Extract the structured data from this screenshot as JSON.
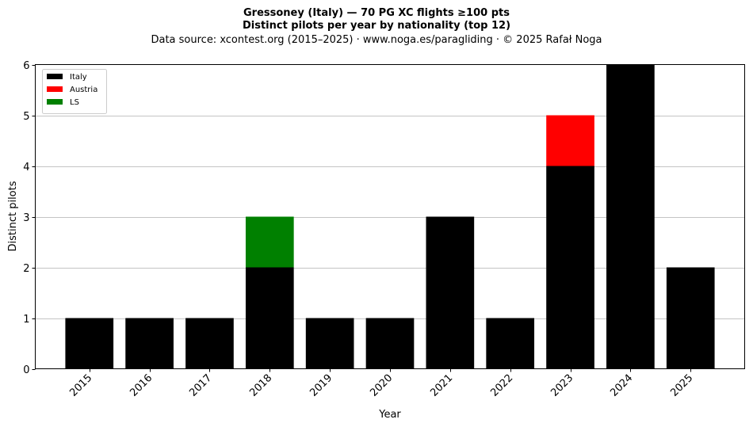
{
  "chart_data": {
    "type": "bar",
    "stacked": true,
    "title_lines": [
      "Gressoney (Italy)  —  70 PG XC flights ≥100 pts",
      "Distinct pilots per year by nationality (top 12)",
      "Data source: xcontest.org (2015–2025)  ·  www.noga.es/paragliding  ·  © 2025 Rafał Noga"
    ],
    "xlabel": "Year",
    "ylabel": "Distinct pilots",
    "categories": [
      "2015",
      "2016",
      "2017",
      "2018",
      "2019",
      "2020",
      "2021",
      "2022",
      "2023",
      "2024",
      "2025"
    ],
    "series": [
      {
        "name": "Italy",
        "color": "#000000",
        "values": [
          1,
          1,
          1,
          2,
          1,
          1,
          3,
          1,
          4,
          6,
          2
        ]
      },
      {
        "name": "Austria",
        "color": "#ff0000",
        "values": [
          0,
          0,
          0,
          0,
          0,
          0,
          0,
          0,
          1,
          0,
          0
        ]
      },
      {
        "name": "LS",
        "color": "#008000",
        "values": [
          0,
          0,
          0,
          1,
          0,
          0,
          0,
          0,
          0,
          0,
          0
        ]
      }
    ],
    "ylim": [
      0,
      6
    ],
    "yticks": [
      0,
      1,
      2,
      3,
      4,
      5,
      6
    ],
    "grid": "y-major",
    "legend_position": "upper-left"
  }
}
